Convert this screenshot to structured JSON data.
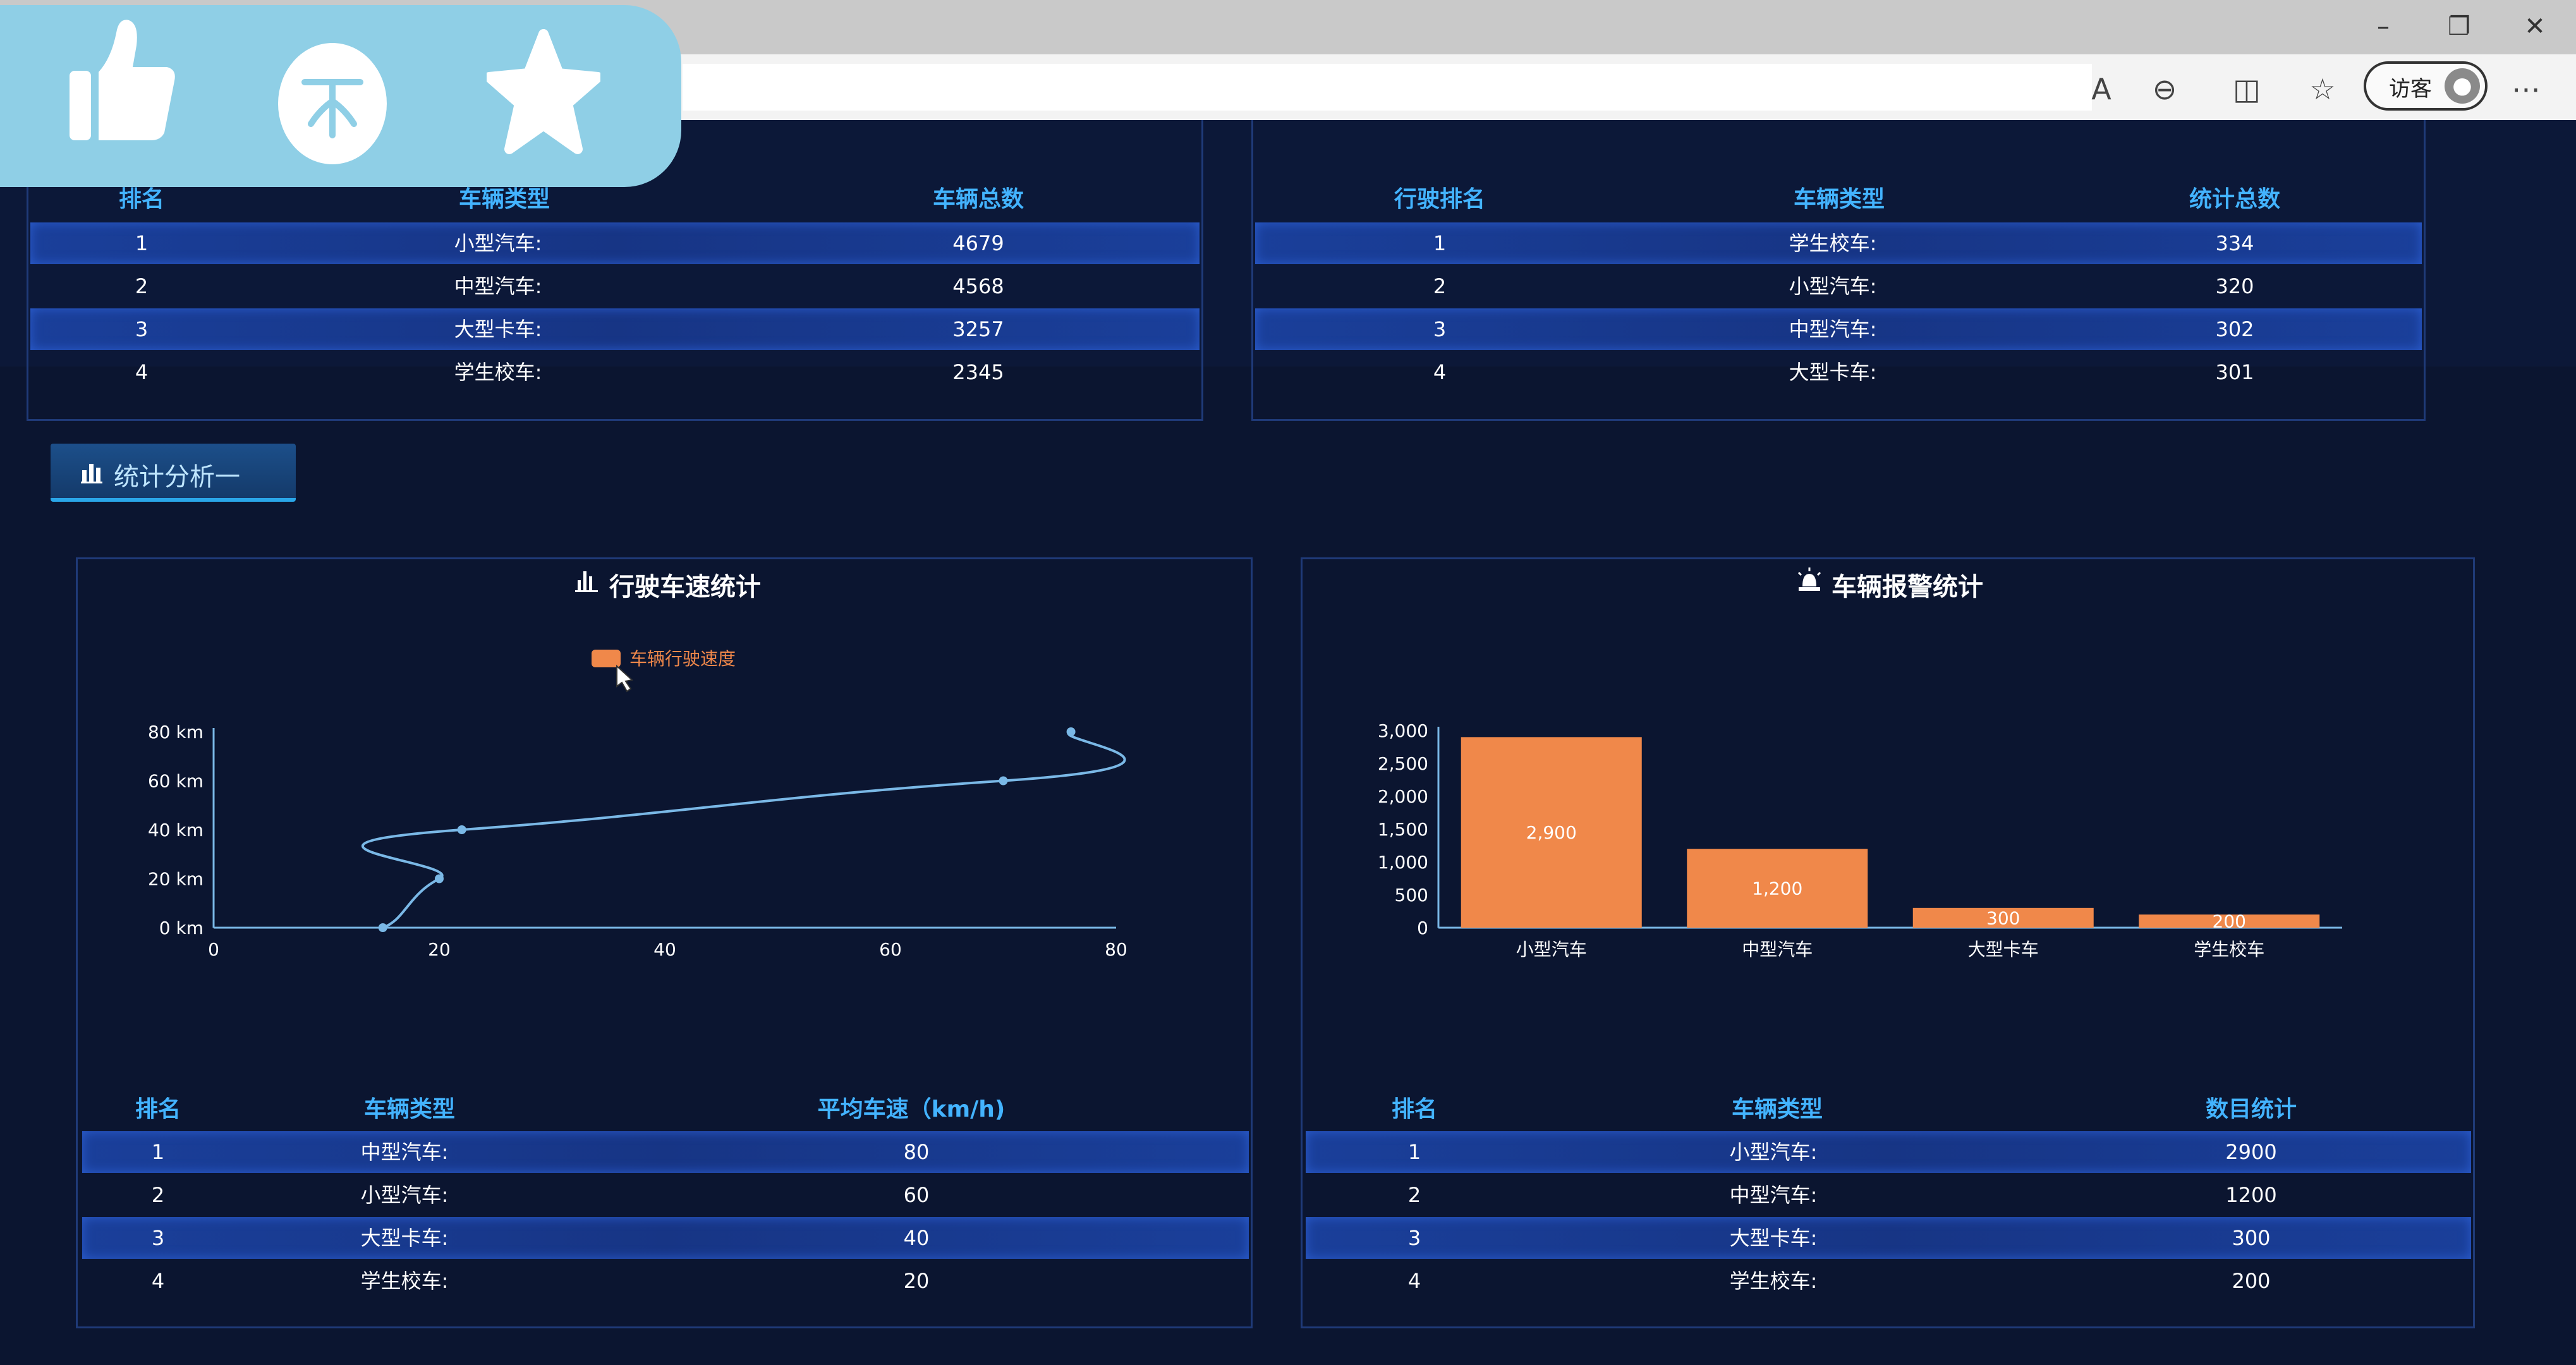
{
  "browser": {
    "guest_label": "访客"
  },
  "top_left_table": {
    "headers": [
      "排名",
      "车辆类型",
      "车辆总数"
    ],
    "rows": [
      [
        "1",
        "小型汽车:",
        "4679"
      ],
      [
        "2",
        "中型汽车:",
        "4568"
      ],
      [
        "3",
        "大型卡车:",
        "3257"
      ],
      [
        "4",
        "学生校车:",
        "2345"
      ]
    ]
  },
  "top_right_table": {
    "headers": [
      "行驶排名",
      "车辆类型",
      "统计总数"
    ],
    "rows": [
      [
        "1",
        "学生校车:",
        "334"
      ],
      [
        "2",
        "小型汽车:",
        "320"
      ],
      [
        "3",
        "中型汽车:",
        "302"
      ],
      [
        "4",
        "大型卡车:",
        "301"
      ]
    ]
  },
  "section_button": {
    "label": "统计分析一"
  },
  "speed_panel": {
    "title": "行驶车速统计",
    "chart_data": {
      "type": "line",
      "title": "行驶车速统计",
      "series": [
        {
          "name": "车辆行驶速度",
          "points": [
            [
              15,
              0
            ],
            [
              20,
              20
            ],
            [
              22,
              40
            ],
            [
              70,
              60
            ],
            [
              76,
              80
            ]
          ]
        }
      ],
      "xlim": [
        0,
        80
      ],
      "ylim": [
        0,
        80
      ],
      "x_ticks": [
        "0",
        "20",
        "40",
        "60",
        "80"
      ],
      "y_ticks": [
        "0 km",
        "20 km",
        "40 km",
        "60 km",
        "80 km"
      ],
      "legend_position": "top",
      "color": "#7ab8e6",
      "legend_color": "#f0884a"
    },
    "table": {
      "headers": [
        "排名",
        "车辆类型",
        "平均车速（km/h)"
      ],
      "rows": [
        [
          "1",
          "中型汽车:",
          "80"
        ],
        [
          "2",
          "小型汽车:",
          "60"
        ],
        [
          "3",
          "大型卡车:",
          "40"
        ],
        [
          "4",
          "学生校车:",
          "20"
        ]
      ]
    }
  },
  "alarm_panel": {
    "title": "车辆报警统计",
    "chart_data": {
      "type": "bar",
      "title": "车辆报警统计",
      "categories": [
        "小型汽车",
        "中型汽车",
        "大型卡车",
        "学生校车"
      ],
      "values": [
        2900,
        1200,
        300,
        200
      ],
      "data_labels": [
        "2,900",
        "1,200",
        "300",
        "200"
      ],
      "ylim": [
        0,
        3000
      ],
      "y_ticks": [
        "0",
        "500",
        "1,000",
        "1,500",
        "2,000",
        "2,500",
        "3,000"
      ],
      "color": "#f0884a"
    },
    "table": {
      "headers": [
        "排名",
        "车辆类型",
        "数目统计"
      ],
      "rows": [
        [
          "1",
          "小型汽车:",
          "2900"
        ],
        [
          "2",
          "中型汽车:",
          "1200"
        ],
        [
          "3",
          "大型卡车:",
          "300"
        ],
        [
          "4",
          "学生校车:",
          "200"
        ]
      ]
    }
  }
}
